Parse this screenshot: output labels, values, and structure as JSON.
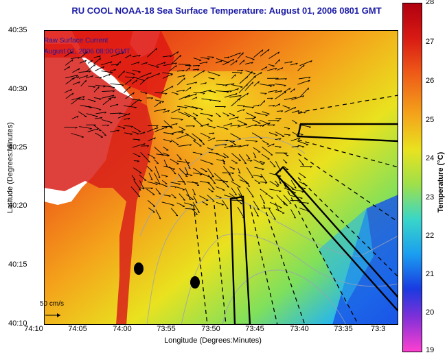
{
  "title": "RU COOL  NOAA-18  Sea Surface Temperature:  August 01, 2006 0801 GMT",
  "map_legend": {
    "line1": "Raw Surface Current",
    "line2": "August 01, 2006 08:00 GMT",
    "scale_label": "50 cm/s"
  },
  "axes": {
    "xlabel": "Longitude (Degrees:Minutes)",
    "ylabel": "Latitude (Degrees:Minutes)",
    "xticks": [
      "74:10",
      "74:05",
      "74:00",
      "73:55",
      "73:50",
      "73:45",
      "73:40",
      "73:35",
      "73:3"
    ],
    "yticks": [
      "40:35",
      "40:30",
      "40:25",
      "40:20",
      "40:15",
      "40:10"
    ]
  },
  "colorbar": {
    "title": "Temperature (°C)",
    "ticks": [
      "28",
      "27",
      "26",
      "25",
      "24",
      "23",
      "22",
      "21",
      "20",
      "19"
    ],
    "colors": [
      "#c00000",
      "#e8301a",
      "#f27a18",
      "#f4bd1c",
      "#e9e21f",
      "#a3e04a",
      "#39d6c8",
      "#1aa0ee",
      "#1a40e0",
      "#7e2bd8",
      "#ff3fcf"
    ]
  },
  "colors": {
    "land": "#ffffff",
    "coast_warm": "#e23a1a",
    "title": "#1a1aa6"
  }
}
